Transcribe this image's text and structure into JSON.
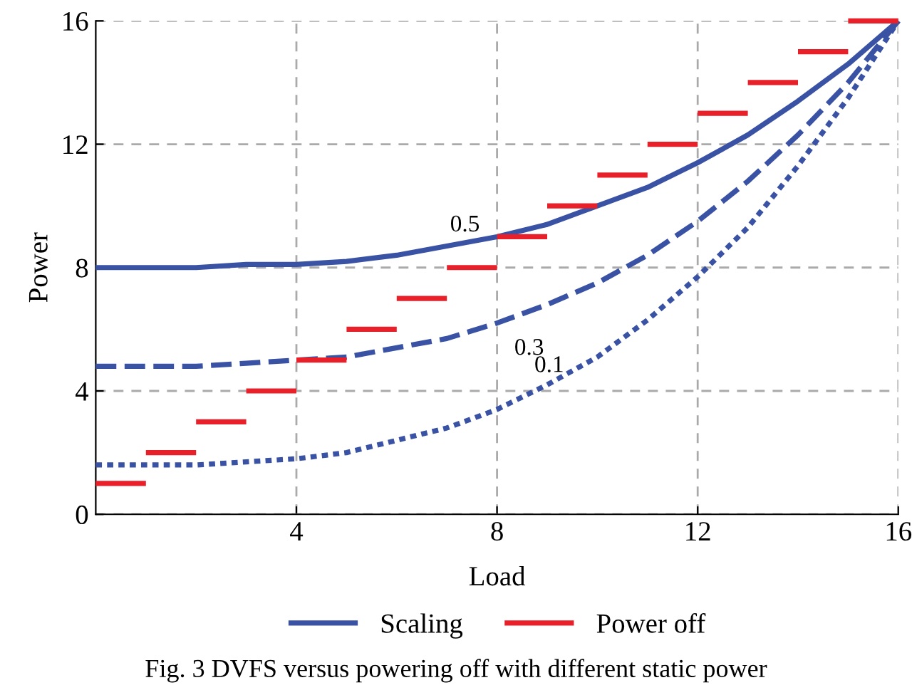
{
  "chart_data": {
    "type": "line",
    "xlabel": "Load",
    "ylabel": "Power",
    "xlim": [
      0,
      16
    ],
    "ylim": [
      0,
      16
    ],
    "xticks": [
      4,
      8,
      12,
      16
    ],
    "yticks": [
      0,
      4,
      8,
      12,
      16
    ],
    "grid": true,
    "legend": "bottom",
    "marker": "none",
    "series": [
      {
        "name": "Scaling",
        "color": "#3a52a4",
        "line_style": "solid",
        "x": [
          0,
          1,
          2,
          3,
          4,
          5,
          6,
          7,
          8,
          9,
          10,
          11,
          12,
          13,
          14,
          15,
          16
        ],
        "values": [
          8,
          8,
          8,
          8.1,
          8.1,
          8.2,
          8.4,
          8.7,
          9,
          9.4,
          10,
          10.6,
          11.4,
          12.3,
          13.4,
          14.6,
          16
        ]
      },
      {
        "color": "#3a52a4",
        "line_style": "dashed",
        "x": [
          0,
          1,
          2,
          3,
          4,
          5,
          6,
          7,
          8,
          9,
          10,
          11,
          12,
          13,
          14,
          15,
          16
        ],
        "values": [
          4.8,
          4.8,
          4.8,
          4.9,
          5,
          5.1,
          5.4,
          5.7,
          6.2,
          6.8,
          7.5,
          8.4,
          9.5,
          10.8,
          12.3,
          14,
          16
        ]
      },
      {
        "color": "#3a52a4",
        "line_style": "dotted",
        "x": [
          0,
          1,
          2,
          3,
          4,
          5,
          6,
          7,
          8,
          9,
          10,
          11,
          12,
          13,
          14,
          15,
          16
        ],
        "values": [
          1.6,
          1.6,
          1.6,
          1.7,
          1.8,
          2,
          2.4,
          2.8,
          3.4,
          4.2,
          5.1,
          6.3,
          7.7,
          9.3,
          11.3,
          13.5,
          16
        ]
      },
      {
        "name": "Power off",
        "color": "#e8202a",
        "line_style": "solid",
        "x": [
          0,
          1,
          null,
          1,
          2,
          null,
          2,
          3,
          null,
          3,
          4,
          null,
          4,
          5,
          null,
          5,
          6,
          null,
          6,
          7,
          null,
          7,
          8,
          null,
          8,
          9,
          null,
          9,
          10,
          null,
          10,
          11,
          null,
          11,
          12,
          null,
          12,
          13,
          null,
          13,
          14,
          null,
          14,
          15,
          null,
          15,
          16
        ],
        "values": [
          1,
          1,
          null,
          2,
          2,
          null,
          3,
          3,
          null,
          4,
          4,
          null,
          5,
          5,
          null,
          6,
          6,
          null,
          7,
          7,
          null,
          8,
          8,
          null,
          9,
          9,
          null,
          10,
          10,
          null,
          11,
          11,
          null,
          12,
          12,
          null,
          13,
          13,
          null,
          14,
          14,
          null,
          15,
          15,
          null,
          16,
          16
        ]
      }
    ],
    "annotations": [
      "0.5",
      "0.3",
      "0.1",
      "Fig. 3 DVFS versus powering off with different static power"
    ]
  }
}
